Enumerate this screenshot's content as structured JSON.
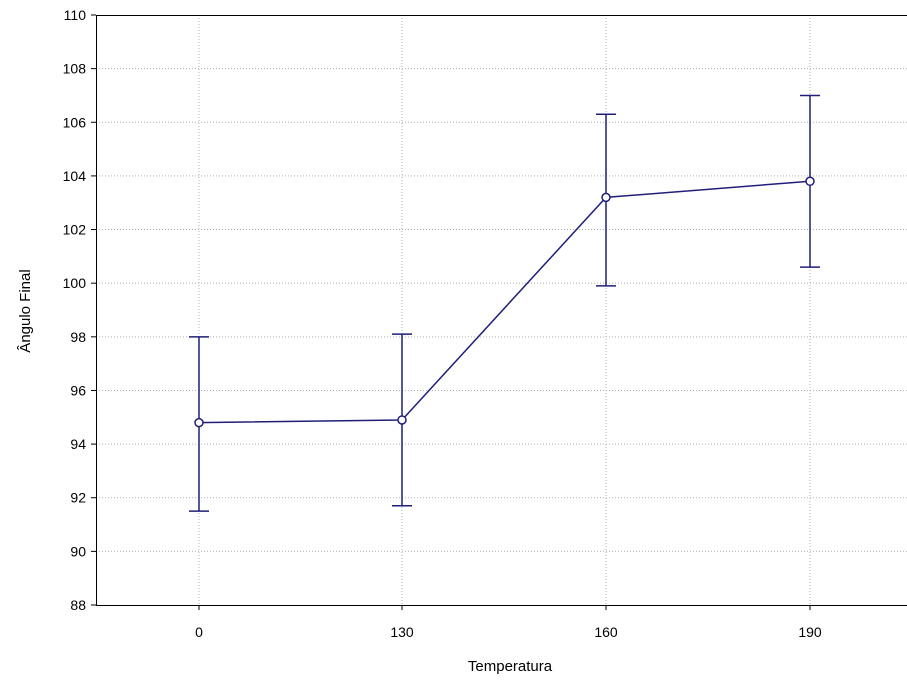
{
  "chart_data": {
    "type": "line",
    "title": "",
    "xlabel": "Temperatura",
    "ylabel": "Ângulo Final",
    "categories": [
      "0",
      "130",
      "160",
      "190"
    ],
    "series": [
      {
        "values": [
          94.8,
          94.9,
          103.2,
          103.8
        ],
        "error_low": [
          91.5,
          91.7,
          99.9,
          100.6
        ],
        "error_high": [
          98.0,
          98.1,
          106.3,
          107.0
        ]
      }
    ],
    "ylim": [
      88,
      110
    ],
    "yticks": [
      88,
      90,
      92,
      94,
      96,
      98,
      100,
      102,
      104,
      106,
      108,
      110
    ],
    "grid": true,
    "grid_style": "dotted",
    "legend": "none",
    "colors": {
      "series": "#1f1f7a",
      "grid": "#b0b0b0",
      "axis": "#000000",
      "marker_fill": "#ffffff"
    }
  }
}
